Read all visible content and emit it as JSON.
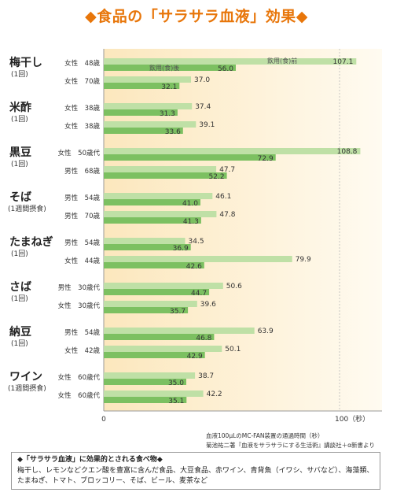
{
  "title": "◆食品の「サラサラ血液」効果◆",
  "chart_data": {
    "type": "bar",
    "orientation": "horizontal",
    "xlim": [
      0,
      108.8
    ],
    "x_ticks": [
      "0",
      "100（秒）"
    ],
    "legend": {
      "before": "飲用(食)前",
      "after": "飲用(食)後"
    },
    "groups": [
      {
        "name": "梅干し",
        "note": "(1回)",
        "rows": [
          {
            "label": "女性　48歳",
            "before": 107.1,
            "after": 56.0
          },
          {
            "label": "女性　70歳",
            "before": 37.0,
            "after": 32.1
          }
        ]
      },
      {
        "name": "米酢",
        "note": "(1回)",
        "rows": [
          {
            "label": "女性　38歳",
            "before": 37.4,
            "after": 31.3
          },
          {
            "label": "女性　38歳",
            "before": 39.1,
            "after": 33.6
          }
        ]
      },
      {
        "name": "黒豆",
        "note": "(1回)",
        "rows": [
          {
            "label": "女性　50歳代",
            "before": 108.8,
            "after": 72.9
          },
          {
            "label": "男性　68歳",
            "before": 47.7,
            "after": 52.2
          }
        ]
      },
      {
        "name": "そば",
        "note": "(1週間摂食)",
        "rows": [
          {
            "label": "男性　54歳",
            "before": 46.1,
            "after": 41.0
          },
          {
            "label": "男性　70歳",
            "before": 47.8,
            "after": 41.3
          }
        ]
      },
      {
        "name": "たまねぎ",
        "note": "(1回)",
        "rows": [
          {
            "label": "男性　54歳",
            "before": 34.5,
            "after": 36.9
          },
          {
            "label": "女性　44歳",
            "before": 79.9,
            "after": 42.6
          }
        ]
      },
      {
        "name": "さば",
        "note": "(1回)",
        "rows": [
          {
            "label": "男性　30歳代",
            "before": 50.6,
            "after": 44.7
          },
          {
            "label": "女性　30歳代",
            "before": 39.6,
            "after": 35.7
          }
        ]
      },
      {
        "name": "納豆",
        "note": "(1回)",
        "rows": [
          {
            "label": "男性　54歳",
            "before": 63.9,
            "after": 46.8
          },
          {
            "label": "女性　42歳",
            "before": 50.1,
            "after": 42.9
          }
        ]
      },
      {
        "name": "ワイン",
        "note": "(1週間摂食)",
        "rows": [
          {
            "label": "女性　60歳代",
            "before": 38.7,
            "after": 35.0
          },
          {
            "label": "女性　60歳代",
            "before": 42.2,
            "after": 35.1
          }
        ]
      }
    ]
  },
  "source_line1": "血液100μLのMC-FAN装置の通過時間（秒）",
  "source_line2": "菊池祐二著『血液をサラサラにする生活術』講談社＋α新書より",
  "box_heading": "◆「サラサラ血液」に効果的とされる食べ物◆",
  "box_text": "梅干し、レモンなどクエン酸を豊富に含んだ食品、大豆食品、赤ワイン、青背魚（イワシ、サバなど）、海藻類、たまねぎ、トマト、ブロッコリー、そば、ビール、麦茶など",
  "colors": {
    "title": "#e8760a",
    "bar_before": "#bfe0a6",
    "bar_after": "#7cc061",
    "plot_bg_left": "#fce7bd",
    "plot_bg_right": "#fffbf1"
  }
}
